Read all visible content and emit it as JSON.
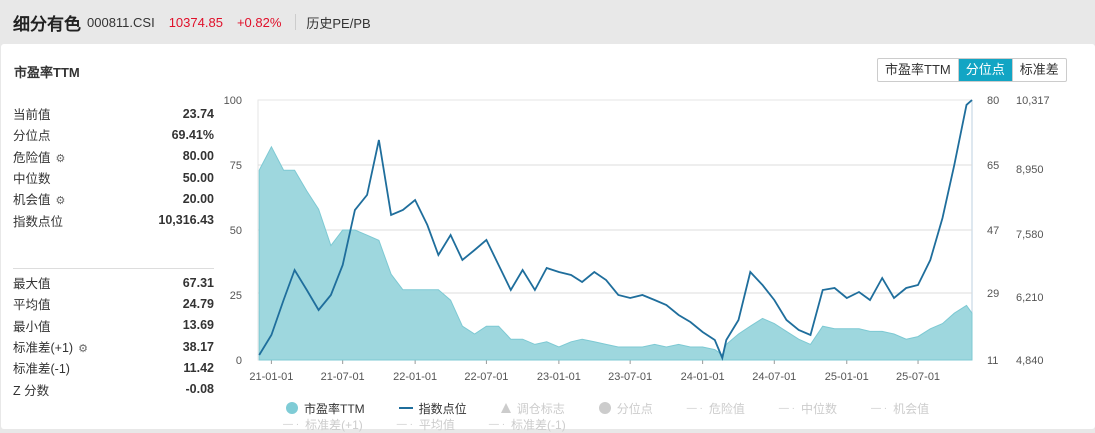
{
  "header": {
    "name": "细分有色",
    "code": "000811.CSI",
    "price": "10374.85",
    "change": "+0.82%",
    "link": "历史PE/PB"
  },
  "card": {
    "title": "市盈率TTM",
    "buttons": [
      {
        "label": "市盈率TTM",
        "active": false
      },
      {
        "label": "分位点",
        "active": true
      },
      {
        "label": "标准差",
        "active": false
      }
    ]
  },
  "stats1": [
    {
      "label": "当前值",
      "value": "23.74"
    },
    {
      "label": "分位点",
      "value": "69.41%"
    },
    {
      "label": "危险值",
      "value": "80.00",
      "gear": true
    },
    {
      "label": "中位数",
      "value": "50.00"
    },
    {
      "label": "机会值",
      "value": "20.00",
      "gear": true
    },
    {
      "label": "指数点位",
      "value": "10,316.43"
    }
  ],
  "stats2": [
    {
      "label": "最大值",
      "value": "67.31"
    },
    {
      "label": "平均值",
      "value": "24.79"
    },
    {
      "label": "最小值",
      "value": "13.69"
    },
    {
      "label": "标准差(+1)",
      "value": "38.17",
      "gear": true
    },
    {
      "label": "标准差(-1)",
      "value": "11.42"
    },
    {
      "label": "Z 分数",
      "value": "-0.08"
    }
  ],
  "icons": {
    "gear": "gear-icon"
  },
  "colors": {
    "area": "#9ed7de",
    "area_line": "#7dc9d3",
    "index_line": "#1f6e9c",
    "accent": "#12a5c4",
    "up": "#e0102a"
  },
  "legend": [
    {
      "label": "市盈率TTM",
      "type": "circle",
      "color": "#7fccd6",
      "active": true
    },
    {
      "label": "指数点位",
      "type": "line",
      "color": "#1f6e9c",
      "active": true
    },
    {
      "label": "调仓标志",
      "type": "triangle",
      "active": false
    },
    {
      "label": "分位点",
      "type": "circle",
      "active": false
    },
    {
      "label": "危险值",
      "type": "dash",
      "active": false
    },
    {
      "label": "中位数",
      "type": "dash",
      "active": false
    },
    {
      "label": "机会值",
      "type": "dash",
      "active": false
    },
    {
      "label": "标准差(+1)",
      "type": "dash",
      "active": false
    },
    {
      "label": "平均值",
      "type": "dash",
      "active": false
    },
    {
      "label": "标准差(-1)",
      "type": "dash",
      "active": false
    }
  ],
  "chart_data": {
    "type": "area+line",
    "x_ticks": [
      "21-01-01",
      "21-07-01",
      "22-01-01",
      "22-07-01",
      "23-01-01",
      "23-07-01",
      "24-01-01",
      "24-07-01",
      "25-01-01",
      "25-07-01"
    ],
    "x_tick_dates": [
      "2021-01-01",
      "2021-07-01",
      "2022-01-01",
      "2022-07-01",
      "2023-01-01",
      "2023-07-01",
      "2024-01-01",
      "2024-07-01",
      "2025-01-01",
      "2025-07-01"
    ],
    "xlim": [
      "2020-11-28",
      "2025-11-15"
    ],
    "left_axis": {
      "ticks": [
        "0",
        "25",
        "50",
        "75",
        "100"
      ],
      "range": [
        0,
        100
      ]
    },
    "right_axis_pe": {
      "ticks": [
        "11",
        "29",
        "47",
        "65",
        "80"
      ]
    },
    "right_axis_index": {
      "ticks": [
        "4,840",
        "6,210",
        "7,580",
        "8,950",
        "10,317"
      ],
      "range": [
        4840,
        10317
      ]
    },
    "dates": [
      "2020-12-01",
      "2021-01-01",
      "2021-02-01",
      "2021-03-01",
      "2021-04-01",
      "2021-05-01",
      "2021-06-01",
      "2021-07-01",
      "2021-08-01",
      "2021-09-01",
      "2021-10-01",
      "2021-11-01",
      "2021-12-01",
      "2022-01-01",
      "2022-02-01",
      "2022-03-01",
      "2022-04-01",
      "2022-05-01",
      "2022-06-01",
      "2022-07-01",
      "2022-08-01",
      "2022-09-01",
      "2022-10-01",
      "2022-11-01",
      "2022-12-01",
      "2023-01-01",
      "2023-02-01",
      "2023-03-01",
      "2023-04-01",
      "2023-05-01",
      "2023-06-01",
      "2023-07-01",
      "2023-08-01",
      "2023-09-01",
      "2023-10-01",
      "2023-11-01",
      "2023-12-01",
      "2024-01-01",
      "2024-02-01",
      "2024-02-20",
      "2024-03-01",
      "2024-04-01",
      "2024-05-01",
      "2024-06-01",
      "2024-07-01",
      "2024-08-01",
      "2024-09-01",
      "2024-10-01",
      "2024-11-01",
      "2024-12-01",
      "2025-01-01",
      "2025-02-01",
      "2025-03-01",
      "2025-04-01",
      "2025-05-01",
      "2025-06-01",
      "2025-07-01",
      "2025-08-01",
      "2025-09-01",
      "2025-10-01",
      "2025-11-01",
      "2025-11-15"
    ],
    "series": [
      {
        "name": "市盈率TTM",
        "axis": "left",
        "type": "area",
        "values": [
          73,
          82,
          73,
          73,
          65,
          58,
          44,
          50,
          50,
          48,
          46,
          33,
          27,
          27,
          27,
          27,
          23,
          13,
          10,
          13,
          13,
          8,
          8,
          6,
          7,
          5,
          7,
          8,
          7,
          6,
          5,
          5,
          5,
          6,
          5,
          6,
          5,
          5,
          4,
          2,
          6,
          10,
          13,
          16,
          14,
          11,
          8,
          6,
          13,
          12,
          12,
          12,
          11,
          11,
          10,
          8,
          9,
          12,
          14,
          18,
          21,
          18
        ]
      },
      {
        "name": "指数点位",
        "axis": "right",
        "type": "line",
        "values": [
          4945,
          5367,
          6104,
          6736,
          6315,
          5894,
          6210,
          6842,
          8000,
          8317,
          9475,
          7895,
          8000,
          8211,
          7685,
          7052,
          7474,
          6947,
          7158,
          7369,
          6842,
          6315,
          6736,
          6315,
          6779,
          6694,
          6631,
          6483,
          6694,
          6526,
          6210,
          6146,
          6210,
          6104,
          5999,
          5788,
          5641,
          5430,
          5261,
          4882,
          5261,
          5683,
          6694,
          6420,
          6104,
          5683,
          5472,
          5367,
          6315,
          6357,
          6146,
          6273,
          6104,
          6568,
          6146,
          6357,
          6420,
          6947,
          7832,
          8949,
          10213,
          10317
        ]
      }
    ]
  }
}
